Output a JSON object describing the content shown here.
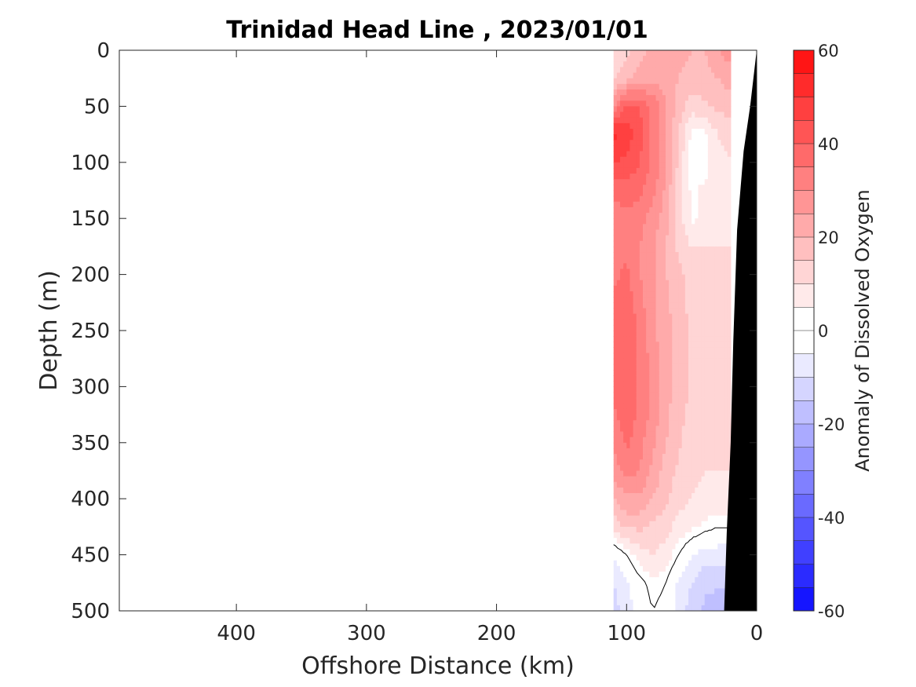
{
  "chart_data": {
    "type": "heatmap",
    "title": "Trinidad Head Line , 2023/01/01",
    "xlabel": "Offshore Distance (km)",
    "ylabel": "Depth (m)",
    "colorbar_label": "Anomaly of Dissolved Oxygen",
    "xlim": [
      490,
      0
    ],
    "ylim": [
      0,
      500
    ],
    "x_reversed": true,
    "y_reversed": true,
    "x_ticks": [
      400,
      300,
      200,
      100,
      0
    ],
    "y_ticks": [
      0,
      50,
      100,
      150,
      200,
      250,
      300,
      350,
      400,
      450,
      500
    ],
    "colorbar_ticks": [
      -60,
      -40,
      -20,
      0,
      20,
      40,
      60
    ],
    "clim": [
      -60,
      60
    ],
    "contour_step": 5,
    "data_extent_x": [
      110,
      20
    ],
    "colormap_endpoints": {
      "negative": "#0000ff",
      "zero": "#ffffff",
      "positive": "#ff0000"
    },
    "seafloor_color": "#000000",
    "field": {
      "x": [
        110,
        100,
        90,
        80,
        70,
        60,
        50,
        40,
        30,
        20
      ],
      "depth": [
        0,
        25,
        50,
        75,
        100,
        125,
        150,
        175,
        200,
        225,
        250,
        275,
        300,
        325,
        350,
        375,
        400,
        425,
        450,
        475,
        500
      ],
      "values": [
        [
          12,
          14,
          18,
          22,
          22,
          22,
          20,
          20,
          25,
          28
        ],
        [
          14,
          18,
          22,
          24,
          22,
          20,
          18,
          18,
          20,
          22
        ],
        [
          30,
          42,
          40,
          34,
          26,
          18,
          12,
          14,
          16,
          18
        ],
        [
          52,
          48,
          42,
          34,
          26,
          14,
          4,
          4,
          10,
          12
        ],
        [
          45,
          44,
          40,
          34,
          26,
          14,
          3,
          3,
          8,
          10
        ],
        [
          36,
          38,
          36,
          32,
          24,
          12,
          4,
          6,
          8,
          10
        ],
        [
          32,
          34,
          32,
          28,
          22,
          12,
          4,
          6,
          8,
          10
        ],
        [
          32,
          34,
          30,
          26,
          20,
          14,
          10,
          10,
          10,
          10
        ],
        [
          34,
          36,
          30,
          26,
          20,
          16,
          14,
          12,
          10,
          10
        ],
        [
          36,
          38,
          32,
          26,
          22,
          16,
          14,
          12,
          10,
          10
        ],
        [
          36,
          40,
          34,
          26,
          22,
          18,
          14,
          12,
          10,
          10
        ],
        [
          36,
          40,
          34,
          28,
          22,
          18,
          14,
          12,
          10,
          10
        ],
        [
          36,
          40,
          34,
          28,
          22,
          18,
          14,
          12,
          10,
          10
        ],
        [
          34,
          38,
          34,
          28,
          22,
          16,
          14,
          12,
          10,
          10
        ],
        [
          30,
          36,
          32,
          26,
          20,
          16,
          12,
          10,
          10,
          10
        ],
        [
          28,
          32,
          30,
          24,
          18,
          14,
          12,
          10,
          10,
          10
        ],
        [
          20,
          24,
          24,
          20,
          16,
          12,
          10,
          8,
          8,
          8
        ],
        [
          12,
          16,
          16,
          14,
          12,
          8,
          6,
          4,
          2,
          2
        ],
        [
          -4,
          2,
          8,
          10,
          8,
          2,
          -4,
          -8,
          -8,
          -8
        ],
        [
          -10,
          -6,
          0,
          4,
          2,
          -6,
          -10,
          -14,
          -14,
          -14
        ],
        [
          -12,
          -8,
          -2,
          2,
          0,
          -8,
          -12,
          -16,
          -18,
          -18
        ]
      ]
    },
    "seafloor": [
      {
        "x": 0,
        "depth": 0
      },
      {
        "x": 5,
        "depth": 50
      },
      {
        "x": 10,
        "depth": 90
      },
      {
        "x": 15,
        "depth": 160
      },
      {
        "x": 18,
        "depth": 260
      },
      {
        "x": 20,
        "depth": 350
      },
      {
        "x": 23,
        "depth": 430
      },
      {
        "x": 25,
        "depth": 500
      }
    ]
  }
}
